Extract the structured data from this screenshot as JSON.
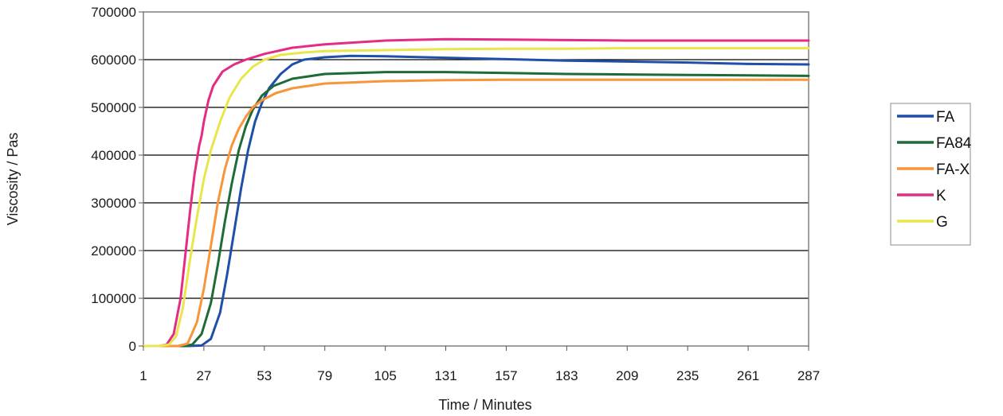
{
  "chart_data": {
    "type": "line",
    "xlabel": "Time / Minutes",
    "ylabel": "Viscosity / Pas",
    "xlim": [
      1,
      287
    ],
    "ylim": [
      0,
      700000
    ],
    "x_ticks": [
      "1",
      "27",
      "53",
      "79",
      "105",
      "131",
      "157",
      "183",
      "209",
      "235",
      "261",
      "287"
    ],
    "y_ticks": [
      "0",
      "100000",
      "200000",
      "300000",
      "400000",
      "500000",
      "600000",
      "700000"
    ],
    "grid": "horizontal",
    "legend_position": "right",
    "series": [
      {
        "name": "FA",
        "color": "#1f4fa8",
        "x": [
          1,
          20,
          26,
          30,
          34,
          37,
          40,
          43,
          46,
          49,
          52,
          55,
          60,
          65,
          70,
          79,
          90,
          105,
          131,
          157,
          183,
          209,
          235,
          261,
          287
        ],
        "y": [
          0,
          0,
          1000,
          15000,
          70000,
          150000,
          240000,
          330000,
          410000,
          470000,
          510000,
          540000,
          570000,
          590000,
          600000,
          605000,
          608000,
          607000,
          604000,
          601000,
          598000,
          596000,
          594000,
          591000,
          590000
        ]
      },
      {
        "name": "FA84",
        "color": "#1e6b37",
        "x": [
          1,
          18,
          22,
          26,
          30,
          33,
          36,
          39,
          42,
          45,
          48,
          52,
          57,
          65,
          79,
          105,
          131,
          157,
          183,
          209,
          235,
          261,
          287
        ],
        "y": [
          0,
          0,
          3000,
          25000,
          90000,
          170000,
          260000,
          340000,
          410000,
          460000,
          495000,
          525000,
          545000,
          560000,
          570000,
          574000,
          574000,
          572000,
          570000,
          569000,
          568000,
          567000,
          566000
        ]
      },
      {
        "name": "FA-X",
        "color": "#f7953a",
        "x": [
          1,
          16,
          20,
          24,
          27,
          30,
          33,
          36,
          39,
          42,
          45,
          48,
          52,
          58,
          65,
          79,
          105,
          131,
          157,
          183,
          209,
          235,
          261,
          287
        ],
        "y": [
          0,
          0,
          5000,
          50000,
          120000,
          210000,
          300000,
          370000,
          420000,
          455000,
          480000,
          500000,
          515000,
          530000,
          540000,
          550000,
          555000,
          557000,
          558000,
          558000,
          558000,
          558000,
          558000,
          558000
        ]
      },
      {
        "name": "K",
        "color": "#e42d82",
        "x": [
          1,
          8,
          11,
          14,
          17,
          19,
          21,
          23,
          25,
          26,
          27,
          29,
          31,
          35,
          40,
          45,
          53,
          65,
          79,
          105,
          131,
          157,
          183,
          209,
          235,
          261,
          287
        ],
        "y": [
          0,
          0,
          3000,
          25000,
          100000,
          190000,
          280000,
          360000,
          420000,
          440000,
          470000,
          515000,
          545000,
          575000,
          590000,
          600000,
          612000,
          625000,
          632000,
          640000,
          643000,
          642000,
          641000,
          640000,
          640000,
          640000,
          640000
        ]
      },
      {
        "name": "G",
        "color": "#e8e64a",
        "x": [
          1,
          8,
          12,
          15,
          18,
          21,
          24,
          27,
          30,
          34,
          38,
          43,
          48,
          53,
          60,
          70,
          79,
          105,
          131,
          157,
          183,
          209,
          235,
          261,
          287
        ],
        "y": [
          0,
          0,
          3000,
          20000,
          80000,
          180000,
          270000,
          350000,
          410000,
          470000,
          520000,
          560000,
          585000,
          600000,
          610000,
          615000,
          618000,
          620000,
          622000,
          623000,
          623000,
          624000,
          624000,
          624000,
          624000
        ]
      }
    ]
  }
}
